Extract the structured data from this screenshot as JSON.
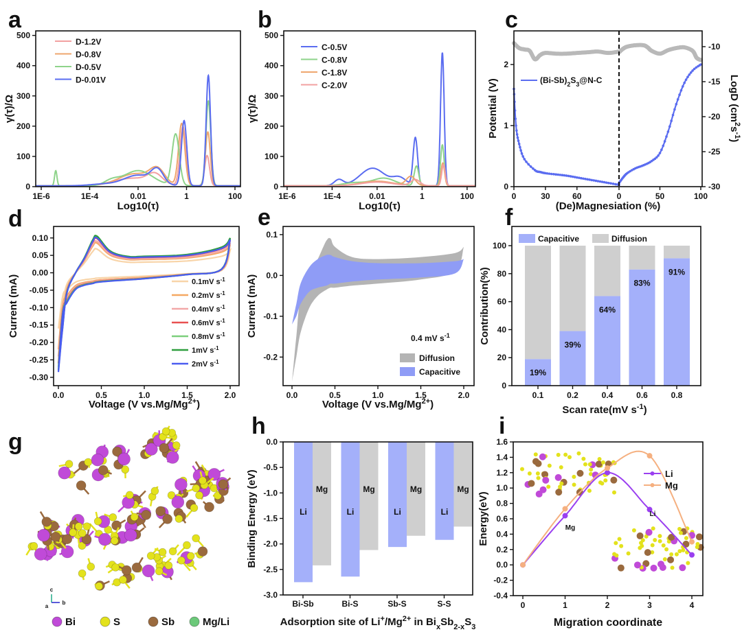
{
  "panel_letters": [
    "a",
    "b",
    "c",
    "d",
    "e",
    "f",
    "g",
    "h",
    "i"
  ],
  "chart_data": [
    {
      "type": "line",
      "panel": "a",
      "xlabel": "Log10(τ)",
      "ylabel": "γ(τ)/Ω",
      "xscale": "log10",
      "xticks": {
        "values": [
          -6,
          -4,
          -2,
          0,
          2
        ],
        "labels": [
          "1E-6",
          "1E-4",
          "0.01",
          "1",
          "100"
        ]
      },
      "yticks": [
        0,
        100,
        200,
        300,
        400,
        500
      ],
      "ylim": [
        0,
        500
      ],
      "legend": "top-left",
      "series": [
        {
          "name": "D-1.2V",
          "color": "#f2a0a0",
          "peaks_log_tau_height_width": [
            [
              -2.2,
              25,
              0.8
            ],
            [
              -1.3,
              30,
              0.3
            ],
            [
              -0.15,
              195,
              0.12
            ],
            [
              0.85,
              100,
              0.1
            ]
          ]
        },
        {
          "name": "D-0.8V",
          "color": "#eea66e",
          "peaks_log_tau_height_width": [
            [
              -2.1,
              40,
              0.7
            ],
            [
              -1.2,
              45,
              0.3
            ],
            [
              -0.2,
              205,
              0.13
            ],
            [
              0.88,
              178,
              0.1
            ]
          ]
        },
        {
          "name": "D-0.5V",
          "color": "#8ed38a",
          "peaks_log_tau_height_width": [
            [
              -5.4,
              50,
              0.05
            ],
            [
              -3.1,
              15,
              0.3
            ],
            [
              -2,
              50,
              0.6
            ],
            [
              -0.45,
              170,
              0.15
            ],
            [
              0.9,
              280,
              0.1
            ]
          ]
        },
        {
          "name": "D-0.01V",
          "color": "#5a6cf0",
          "peaks_log_tau_height_width": [
            [
              -3.5,
              5,
              0.5
            ],
            [
              -2,
              35,
              0.6
            ],
            [
              -1.2,
              45,
              0.25
            ],
            [
              -0.1,
              215,
              0.11
            ],
            [
              0.9,
              365,
              0.09
            ]
          ]
        }
      ]
    },
    {
      "type": "line",
      "panel": "b",
      "xlabel": "Log10(τ)",
      "ylabel": "γ(τ)/Ω",
      "xscale": "log10",
      "xticks": {
        "values": [
          -6,
          -4,
          -2,
          0,
          2
        ],
        "labels": [
          "1E-6",
          "1E-4",
          "0.01",
          "1",
          "100"
        ]
      },
      "yticks": [
        0,
        100,
        200,
        300,
        400,
        500
      ],
      "ylim": [
        0,
        500
      ],
      "legend": "top-left",
      "series": [
        {
          "name": "C-0.5V",
          "color": "#5a6cf0",
          "peaks_log_tau_height_width": [
            [
              -3.7,
              20,
              0.2
            ],
            [
              -2.2,
              58,
              0.55
            ],
            [
              -1,
              25,
              0.3
            ],
            [
              -0.3,
              158,
              0.1
            ],
            [
              0.9,
              440,
              0.08
            ]
          ]
        },
        {
          "name": "C-0.8V",
          "color": "#8ed38a",
          "peaks_log_tau_height_width": [
            [
              -3,
              10,
              0.5
            ],
            [
              -1.7,
              25,
              0.5
            ],
            [
              -0.25,
              65,
              0.1
            ],
            [
              0.9,
              135,
              0.08
            ]
          ]
        },
        {
          "name": "C-1.8V",
          "color": "#eea66e",
          "peaks_log_tau_height_width": [
            [
              -2,
              15,
              0.7
            ],
            [
              -0.5,
              30,
              0.2
            ],
            [
              0.92,
              75,
              0.08
            ]
          ]
        },
        {
          "name": "C-2.0V",
          "color": "#f2a0a0",
          "peaks_log_tau_height_width": [
            [
              -2,
              12,
              0.7
            ],
            [
              -0.3,
              20,
              0.2
            ],
            [
              0.95,
              70,
              0.08
            ]
          ]
        }
      ]
    },
    {
      "type": "line",
      "panel": "c",
      "xlabel": "(De)Magnesiation (%)",
      "ylabel": "Potential (V)",
      "ylabel_right": "LogD (cm^{2}s^{-1})",
      "xticks_left": [
        0,
        30,
        60
      ],
      "xticks_right": [
        0,
        50,
        100
      ],
      "yticks": [
        0,
        1,
        2
      ],
      "yticks_right": [
        -10,
        -15,
        -20,
        -25,
        -30
      ],
      "legend": "(Bi-Sb)_{2}S_{3}@N-C",
      "line_color": "#5a6cf0",
      "logd_color": "#b9b9b9",
      "discharge": {
        "x": [
          0,
          2,
          5,
          10,
          20,
          25,
          30,
          40,
          50,
          60,
          70,
          80,
          90,
          100
        ],
        "potential": [
          1.6,
          1.0,
          0.7,
          0.45,
          0.27,
          0.24,
          0.22,
          0.2,
          0.18,
          0.15,
          0.12,
          0.09,
          0.06,
          0.03
        ]
      },
      "charge": {
        "x": [
          0,
          5,
          10,
          20,
          30,
          40,
          50,
          60,
          70,
          80,
          90,
          100
        ],
        "potential": [
          0.06,
          0.15,
          0.22,
          0.3,
          0.35,
          0.42,
          0.55,
          0.9,
          1.35,
          1.7,
          1.9,
          2.0
        ]
      },
      "logD_discharge": {
        "x": [
          0,
          5,
          10,
          15,
          20,
          25,
          30,
          40,
          50,
          60,
          70,
          80,
          90,
          100
        ],
        "logD": [
          -9.5,
          -10.2,
          -10.4,
          -10.6,
          -11.8,
          -11.2,
          -10.9,
          -11,
          -11,
          -10.9,
          -10.8,
          -10.7,
          -10.9,
          -10.7
        ]
      },
      "logD_charge": {
        "x": [
          0,
          5,
          10,
          20,
          30,
          35,
          40,
          50,
          60,
          70,
          80,
          90,
          95,
          100
        ],
        "logD": [
          -10.8,
          -10.3,
          -10,
          -9.8,
          -9.8,
          -10.1,
          -10.6,
          -11,
          -10.5,
          -10.2,
          -10.1,
          -10.6,
          -11.6,
          -11.9
        ]
      }
    },
    {
      "type": "line",
      "panel": "d",
      "xlabel": "Voltage (V vs.Mg/Mg^{2+})",
      "ylabel": "Current (mA)",
      "xticks": [
        0,
        0.5,
        1.0,
        1.5,
        2.0
      ],
      "xtick_labels": [
        "0.0",
        "0.5",
        "1.0",
        "1.5",
        "2.0"
      ],
      "yticks": [
        0.1,
        0.05,
        0.0,
        -0.05,
        -0.1,
        -0.15,
        -0.2,
        -0.25,
        -0.3
      ],
      "ytick_labels": [
        "0.10",
        "0.05",
        "0.00",
        "-0.05",
        "-0.10",
        "-0.15",
        "-0.20",
        "-0.25",
        "-0.30"
      ],
      "legend": "bottom-right",
      "series": [
        {
          "name": "0.1mV s^{-1}",
          "color": "#f8d4a8",
          "peak_current": 0.068,
          "min_current": -0.16
        },
        {
          "name": "0.2mV s^{-1}",
          "color": "#f5a862",
          "peak_current": 0.085,
          "min_current": -0.22
        },
        {
          "name": "0.4mV s^{-1}",
          "color": "#f2a8a8",
          "peak_current": 0.09,
          "min_current": -0.24
        },
        {
          "name": "0.6mV s^{-1}",
          "color": "#e85050",
          "peak_current": 0.098,
          "min_current": -0.26
        },
        {
          "name": "0.8mV s^{-1}",
          "color": "#7ccf7c",
          "peak_current": 0.103,
          "min_current": -0.27
        },
        {
          "name": "1mV s^{-1}",
          "color": "#2e9e3e",
          "peak_current": 0.105,
          "min_current": -0.28
        },
        {
          "name": "2mV s^{-1}",
          "color": "#4a5cf0",
          "peak_current": 0.1,
          "min_current": -0.285
        }
      ]
    },
    {
      "type": "area",
      "panel": "e",
      "xlabel": "Voltage (V vs.Mg/Mg^{2+})",
      "ylabel": "Current (mA)",
      "xticks": [
        0,
        0.5,
        1.0,
        1.5,
        2.0
      ],
      "xtick_labels": [
        "0.0",
        "0.5",
        "1.0",
        "1.5",
        "2.0"
      ],
      "yticks": [
        0.1,
        0.0,
        -0.1,
        -0.2
      ],
      "ytick_labels": [
        "0.1",
        "0.0",
        "-0.1",
        "-0.2"
      ],
      "annotation": "0.4 mV s^{-1}",
      "x": [
        0,
        0.05,
        0.1,
        0.2,
        0.3,
        0.4,
        0.45,
        0.5,
        0.7,
        1.0,
        1.5,
        1.9,
        2.0
      ],
      "series": [
        {
          "name": "Diffusion",
          "color": "#b4b4b4",
          "upper": [
            -0.26,
            -0.15,
            -0.05,
            0.0,
            0.04,
            0.085,
            0.09,
            0.07,
            0.045,
            0.04,
            0.045,
            0.055,
            0.07
          ],
          "lower": [
            -0.26,
            -0.2,
            -0.14,
            -0.08,
            -0.05,
            -0.035,
            -0.03,
            -0.03,
            -0.025,
            -0.02,
            -0.01,
            0.01,
            0.07
          ]
        },
        {
          "name": "Capacitive",
          "color": "#8f9cf6",
          "upper": [
            -0.12,
            -0.07,
            -0.02,
            0.02,
            0.04,
            0.05,
            0.05,
            0.045,
            0.035,
            0.03,
            0.03,
            0.035,
            0.04
          ],
          "lower": [
            -0.12,
            -0.1,
            -0.07,
            -0.04,
            -0.03,
            -0.025,
            -0.02,
            -0.02,
            -0.015,
            -0.01,
            -0.005,
            0.005,
            0.04
          ]
        }
      ]
    },
    {
      "type": "bar",
      "panel": "f",
      "stacked": true,
      "xlabel": "Scan rate(mV s^{-1})",
      "ylabel": "Contribution(%)",
      "categories": [
        "0.1",
        "0.2",
        "0.4",
        "0.6",
        "0.8"
      ],
      "series": [
        {
          "name": "Capacitive",
          "color": "#a4b0fa",
          "values": [
            19,
            39,
            64,
            83,
            91
          ]
        },
        {
          "name": "Diffusion",
          "color": "#cfcfcf",
          "values": [
            81,
            61,
            36,
            17,
            9
          ]
        }
      ],
      "data_labels": [
        "19%",
        "39%",
        "64%",
        "83%",
        "91%"
      ],
      "yticks": [
        0,
        20,
        40,
        60,
        80,
        100
      ],
      "ylim": [
        0,
        100
      ],
      "legend": "top"
    },
    {
      "type": "diagram",
      "panel": "g",
      "legend": [
        {
          "name": "Bi",
          "color": "#c04ad8"
        },
        {
          "name": "S",
          "color": "#e3e21c"
        },
        {
          "name": "Sb",
          "color": "#9a6a3e"
        },
        {
          "name": "Mg/Li",
          "color": "#6cc97a"
        }
      ],
      "axes_labels": [
        "c",
        "a",
        "b"
      ]
    },
    {
      "type": "bar",
      "panel": "h",
      "xlabel": "Adsorption site of Li^{+}/Mg^{2+} in Bi_{x}Sb_{2-x}S_{3}",
      "ylabel": "Binding Energy (eV)",
      "categories": [
        "Bi-Sb",
        "Bi-S",
        "Sb-S",
        "S-S"
      ],
      "series": [
        {
          "name": "Li",
          "color": "#a4b0fa",
          "values": [
            -2.75,
            -2.64,
            -2.06,
            -1.92
          ]
        },
        {
          "name": "Mg",
          "color": "#cfcfcf",
          "values": [
            -2.42,
            -2.12,
            -1.84,
            -1.66
          ]
        }
      ],
      "yticks": [
        0.0,
        -0.5,
        -1.0,
        -1.5,
        -2.0,
        -2.5,
        -3.0
      ],
      "ytick_labels": [
        "0.0",
        "-0.5",
        "-1.0",
        "-1.5",
        "-2.0",
        "-2.5",
        "-3.0"
      ],
      "ylim": [
        -3,
        0
      ]
    },
    {
      "type": "line",
      "panel": "i",
      "xlabel": "Migration coordinate",
      "ylabel": "Energy(eV)",
      "x": [
        0,
        1,
        2,
        3,
        4
      ],
      "series": [
        {
          "name": "Li",
          "color": "#9a3ff0",
          "values": [
            0,
            0.64,
            1.2,
            0.72,
            0.13
          ]
        },
        {
          "name": "Mg",
          "color": "#f5b080",
          "values": [
            0,
            0.73,
            1.26,
            1.42,
            0.3
          ]
        }
      ],
      "annotations": [
        "Mg",
        "Li"
      ],
      "xticks": [
        0,
        1,
        2,
        3,
        4
      ],
      "yticks": [
        1.6,
        1.4,
        1.2,
        1.0,
        0.8,
        0.6,
        0.4,
        0.2,
        0.0,
        -0.2,
        -0.4
      ],
      "ytick_labels": [
        "1.6",
        "1.4",
        "1.2",
        "1.0",
        "0.8",
        "0.6",
        "0.4",
        "0.2",
        "0.0",
        "-0.2",
        "-0.4"
      ],
      "ylim": [
        -0.4,
        1.6
      ],
      "legend": "top-right"
    }
  ]
}
